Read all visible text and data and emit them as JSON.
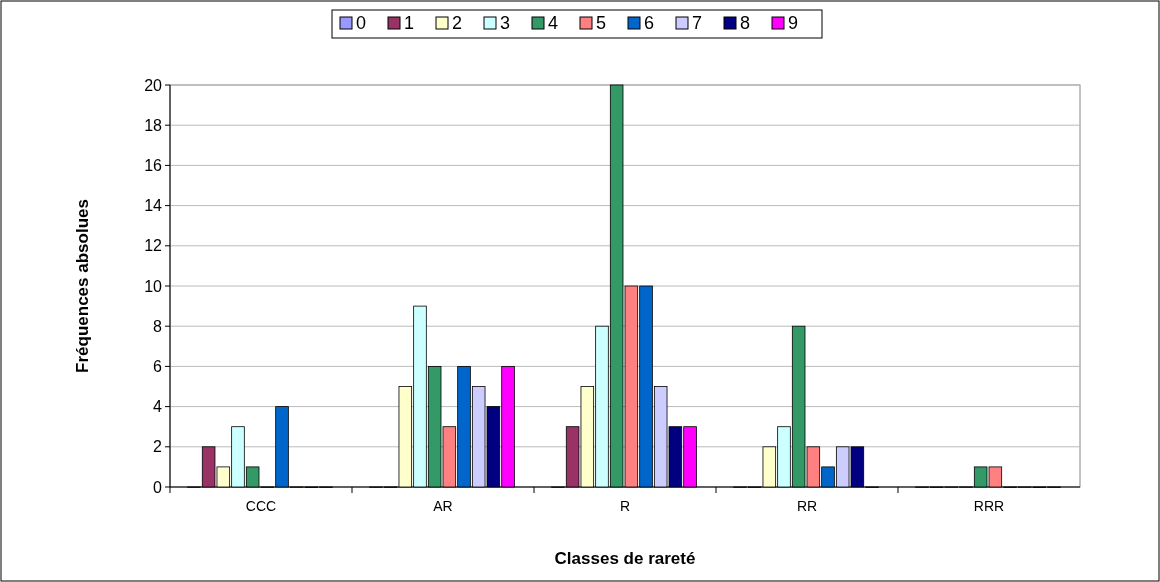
{
  "chart_data": {
    "type": "bar",
    "xlabel": "Classes de rareté",
    "ylabel": "Fréquences absolues",
    "categories": [
      "CCC",
      "AR",
      "R",
      "RR",
      "RRR"
    ],
    "series": [
      {
        "name": "0",
        "color": "#9999ff",
        "values": [
          0,
          0,
          0,
          0,
          0
        ]
      },
      {
        "name": "1",
        "color": "#993366",
        "values": [
          2,
          0,
          3,
          0,
          0
        ]
      },
      {
        "name": "2",
        "color": "#ffffcc",
        "values": [
          1,
          5,
          5,
          2,
          0
        ]
      },
      {
        "name": "3",
        "color": "#ccffff",
        "values": [
          3,
          9,
          8,
          3,
          0
        ]
      },
      {
        "name": "4",
        "color": "#339966",
        "values": [
          1,
          6,
          20,
          8,
          1
        ]
      },
      {
        "name": "5",
        "color": "#ff8080",
        "values": [
          0,
          3,
          10,
          2,
          1
        ]
      },
      {
        "name": "6",
        "color": "#0066cc",
        "values": [
          4,
          6,
          10,
          1,
          0
        ]
      },
      {
        "name": "7",
        "color": "#ccccff",
        "values": [
          0,
          5,
          5,
          2,
          0
        ]
      },
      {
        "name": "8",
        "color": "#000080",
        "values": [
          0,
          4,
          3,
          2,
          0
        ]
      },
      {
        "name": "9",
        "color": "#ff00ff",
        "values": [
          0,
          6,
          3,
          0,
          0
        ]
      }
    ],
    "ylim": [
      0,
      20
    ],
    "yticks": [
      0,
      2,
      4,
      6,
      8,
      10,
      12,
      14,
      16,
      18,
      20
    ],
    "grid": "y",
    "legend": "top"
  }
}
